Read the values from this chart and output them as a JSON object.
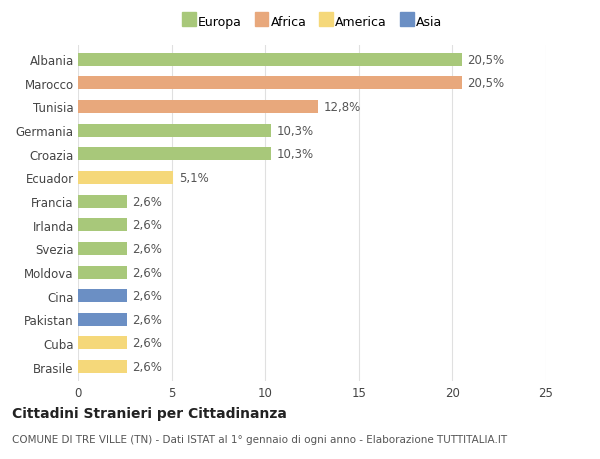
{
  "categories": [
    "Albania",
    "Marocco",
    "Tunisia",
    "Germania",
    "Croazia",
    "Ecuador",
    "Francia",
    "Irlanda",
    "Svezia",
    "Moldova",
    "Cina",
    "Pakistan",
    "Cuba",
    "Brasile"
  ],
  "values": [
    20.5,
    20.5,
    12.8,
    10.3,
    10.3,
    5.1,
    2.6,
    2.6,
    2.6,
    2.6,
    2.6,
    2.6,
    2.6,
    2.6
  ],
  "labels": [
    "20,5%",
    "20,5%",
    "12,8%",
    "10,3%",
    "10,3%",
    "5,1%",
    "2,6%",
    "2,6%",
    "2,6%",
    "2,6%",
    "2,6%",
    "2,6%",
    "2,6%",
    "2,6%"
  ],
  "continent": [
    "Europa",
    "Africa",
    "Africa",
    "Europa",
    "Europa",
    "America",
    "Europa",
    "Europa",
    "Europa",
    "Europa",
    "Asia",
    "Asia",
    "America",
    "America"
  ],
  "colors": {
    "Europa": "#a8c87a",
    "Africa": "#e8a87c",
    "America": "#f5d87a",
    "Asia": "#6b8fc4"
  },
  "legend_order": [
    "Europa",
    "Africa",
    "America",
    "Asia"
  ],
  "title": "Cittadini Stranieri per Cittadinanza",
  "subtitle": "COMUNE DI TRE VILLE (TN) - Dati ISTAT al 1° gennaio di ogni anno - Elaborazione TUTTITALIA.IT",
  "xlim": [
    0,
    25
  ],
  "xticks": [
    0,
    5,
    10,
    15,
    20,
    25
  ],
  "bg_color": "#ffffff",
  "grid_color": "#e0e0e0",
  "bar_height": 0.55,
  "title_fontsize": 10,
  "subtitle_fontsize": 7.5,
  "tick_fontsize": 8.5,
  "label_fontsize": 8.5
}
